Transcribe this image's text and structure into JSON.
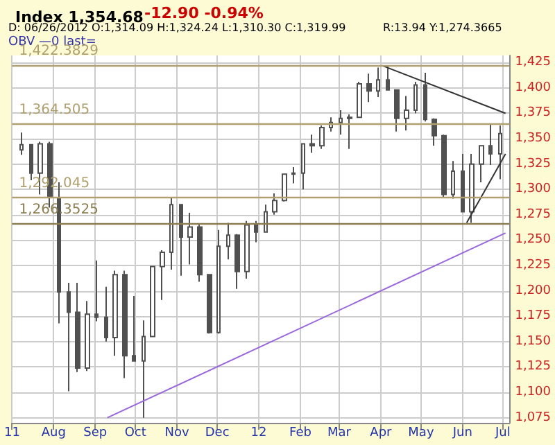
{
  "chart_data": {
    "type": "candlestick",
    "title": "Index 1,354.68",
    "annotations": [
      "-12.90 -0.94%",
      "D: 06/26/2012 O:1,314.09 H:1,324.24 L:1,310.30 C:1,319.99",
      "R:13.94 Y:1,274.3665",
      "OBV —0 last="
    ],
    "x": [
      "2011-07-08",
      "2011-07-15",
      "2011-07-22",
      "2011-07-29",
      "2011-08-05",
      "2011-08-12",
      "2011-08-19",
      "2011-08-26",
      "2011-09-02",
      "2011-09-09",
      "2011-09-16",
      "2011-09-23",
      "2011-09-30",
      "2011-10-07",
      "2011-10-14",
      "2011-10-21",
      "2011-10-28",
      "2011-11-04",
      "2011-11-11",
      "2011-11-18",
      "2011-11-25",
      "2011-12-02",
      "2011-12-09",
      "2011-12-16",
      "2011-12-23",
      "2011-12-30",
      "2012-01-06",
      "2012-01-13",
      "2012-01-20",
      "2012-01-27",
      "2012-02-03",
      "2012-02-10",
      "2012-02-17",
      "2012-02-24",
      "2012-03-02",
      "2012-03-09",
      "2012-03-16",
      "2012-03-23",
      "2012-03-30",
      "2012-04-06",
      "2012-04-13",
      "2012-04-20",
      "2012-04-27",
      "2012-05-04",
      "2012-05-11",
      "2012-05-18",
      "2012-05-25",
      "2012-06-01",
      "2012-06-08",
      "2012-06-15",
      "2012-06-22",
      "2012-06-29"
    ],
    "ohlc": [
      [
        1339,
        1356,
        1334,
        1344
      ],
      [
        1344,
        1344,
        1309,
        1316
      ],
      [
        1316,
        1347,
        1295,
        1345
      ],
      [
        1345,
        1347,
        1282,
        1292
      ],
      [
        1292,
        1307,
        1168,
        1199
      ],
      [
        1199,
        1208,
        1101,
        1179
      ],
      [
        1179,
        1208,
        1120,
        1124
      ],
      [
        1124,
        1190,
        1121,
        1177
      ],
      [
        1177,
        1230,
        1170,
        1174
      ],
      [
        1174,
        1204,
        1150,
        1154
      ],
      [
        1154,
        1220,
        1136,
        1216
      ],
      [
        1216,
        1220,
        1114,
        1136
      ],
      [
        1136,
        1195,
        1131,
        1131
      ],
      [
        1131,
        1171,
        1075,
        1155
      ],
      [
        1155,
        1224,
        1155,
        1224
      ],
      [
        1224,
        1240,
        1191,
        1238
      ],
      [
        1238,
        1292,
        1221,
        1285
      ],
      [
        1285,
        1285,
        1215,
        1253
      ],
      [
        1253,
        1277,
        1226,
        1263
      ],
      [
        1263,
        1266,
        1209,
        1216
      ],
      [
        1216,
        1216,
        1158,
        1159
      ],
      [
        1159,
        1260,
        1158,
        1244
      ],
      [
        1244,
        1267,
        1231,
        1255
      ],
      [
        1255,
        1256,
        1202,
        1219
      ],
      [
        1219,
        1269,
        1212,
        1265
      ],
      [
        1265,
        1269,
        1248,
        1258
      ],
      [
        1258,
        1285,
        1258,
        1278
      ],
      [
        1278,
        1296,
        1275,
        1289
      ],
      [
        1289,
        1315,
        1288,
        1315
      ],
      [
        1315,
        1322,
        1306,
        1316
      ],
      [
        1316,
        1345,
        1300,
        1345
      ],
      [
        1345,
        1354,
        1336,
        1343
      ],
      [
        1343,
        1363,
        1340,
        1361
      ],
      [
        1361,
        1371,
        1357,
        1366
      ],
      [
        1366,
        1378,
        1354,
        1370
      ],
      [
        1370,
        1374,
        1340,
        1371
      ],
      [
        1371,
        1406,
        1371,
        1404
      ],
      [
        1404,
        1414,
        1386,
        1397
      ],
      [
        1397,
        1420,
        1391,
        1408
      ],
      [
        1408,
        1422,
        1398,
        1398
      ],
      [
        1398,
        1398,
        1357,
        1370
      ],
      [
        1370,
        1392,
        1358,
        1378
      ],
      [
        1378,
        1406,
        1375,
        1403
      ],
      [
        1403,
        1415,
        1367,
        1369
      ],
      [
        1369,
        1370,
        1343,
        1353
      ],
      [
        1353,
        1354,
        1292,
        1295
      ],
      [
        1295,
        1328,
        1291,
        1318
      ],
      [
        1318,
        1335,
        1278,
        1278
      ],
      [
        1278,
        1335,
        1267,
        1325
      ],
      [
        1325,
        1343,
        1307,
        1343
      ],
      [
        1343,
        1364,
        1324,
        1335
      ],
      [
        1335,
        1363,
        1310,
        1355
      ]
    ],
    "color": "#505050",
    "series": [
      {
        "type": "line",
        "color": "#9966dd",
        "x": [
          "2011-09-10",
          "2012-07-03"
        ],
        "values": [
          1075,
          1257
        ]
      },
      {
        "type": "line",
        "color": "#333333",
        "x": [
          "2012-04-02",
          "2012-07-03"
        ],
        "values": [
          1422,
          1375
        ]
      },
      {
        "type": "line",
        "color": "#333333",
        "x": [
          "2012-06-04",
          "2012-07-03"
        ],
        "values": [
          1267,
          1335
        ]
      }
    ],
    "ref_lines": [
      {
        "axis": "y",
        "value": 1422.3829,
        "label": "1,422.3829",
        "color": "#b0a070"
      },
      {
        "axis": "y",
        "value": 1364.505,
        "label": "1,364.505",
        "color": "#b0a070"
      },
      {
        "axis": "y",
        "value": 1292.045,
        "label": "1,292.045",
        "color": "#b0a070"
      },
      {
        "axis": "y",
        "value": 1266.3525,
        "label": "1,266.3525",
        "color": "#8c7e50"
      }
    ],
    "xlim": [
      "2011-07-01",
      "2012-07-06"
    ],
    "xticks": [
      {
        "value": "2011-07-01",
        "label": "11"
      },
      {
        "value": "2011-08-01",
        "label": "Aug"
      },
      {
        "value": "2011-09-01",
        "label": "Sep"
      },
      {
        "value": "2011-10-01",
        "label": "Oct"
      },
      {
        "value": "2011-11-01",
        "label": "Nov"
      },
      {
        "value": "2011-12-01",
        "label": "Dec"
      },
      {
        "value": "2012-01-01",
        "label": "12"
      },
      {
        "value": "2012-02-01",
        "label": "Feb"
      },
      {
        "value": "2012-03-01",
        "label": "Mar"
      },
      {
        "value": "2012-04-01",
        "label": "Apr"
      },
      {
        "value": "2012-05-01",
        "label": "May"
      },
      {
        "value": "2012-06-01",
        "label": "Jun"
      },
      {
        "value": "2012-07-01",
        "label": "Jul"
      }
    ],
    "ylim": [
      1070,
      1432
    ],
    "yticks": [
      {
        "value": 1075,
        "label": "1,075"
      },
      {
        "value": 1100,
        "label": "1,100"
      },
      {
        "value": 1125,
        "label": "1,125"
      },
      {
        "value": 1150,
        "label": "1,150"
      },
      {
        "value": 1175,
        "label": "1,175"
      },
      {
        "value": 1200,
        "label": "1,200"
      },
      {
        "value": 1225,
        "label": "1,225"
      },
      {
        "value": 1250,
        "label": "1,250"
      },
      {
        "value": 1275,
        "label": "1,275"
      },
      {
        "value": 1300,
        "label": "1,300"
      },
      {
        "value": 1325,
        "label": "1,325"
      },
      {
        "value": 1350,
        "label": "1,350"
      },
      {
        "value": 1375,
        "label": "1,375"
      },
      {
        "value": 1400,
        "label": "1,400"
      },
      {
        "value": 1425,
        "label": "1,425"
      }
    ],
    "grid": true
  }
}
